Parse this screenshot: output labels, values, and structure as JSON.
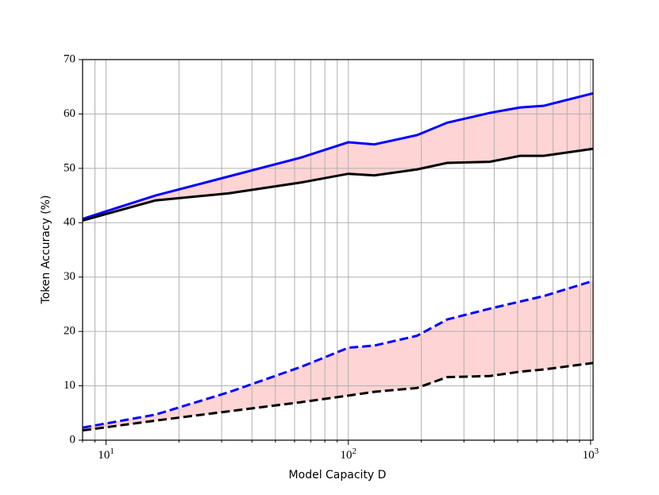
{
  "chart_data": {
    "type": "line",
    "xlabel": "Model Capacity D",
    "ylabel": "Token Accuracy (%)",
    "x": [
      8,
      16,
      32,
      64,
      100,
      128,
      192,
      256,
      384,
      512,
      640,
      1024
    ],
    "series": [
      {
        "color": "#0000ff",
        "dash": false,
        "values": [
          40.7,
          45.0,
          48.5,
          52.0,
          54.8,
          54.4,
          56.1,
          58.4,
          60.2,
          61.2,
          61.5,
          63.8
        ]
      },
      {
        "color": "#000000",
        "dash": false,
        "values": [
          40.4,
          44.1,
          45.4,
          47.4,
          49.0,
          48.7,
          49.8,
          51.0,
          51.2,
          52.3,
          52.3,
          53.6
        ]
      },
      {
        "color": "#0000ff",
        "dash": true,
        "values": [
          2.3,
          4.7,
          8.8,
          13.5,
          17.0,
          17.4,
          19.2,
          22.2,
          24.2,
          25.5,
          26.5,
          29.3
        ]
      },
      {
        "color": "#000000",
        "dash": true,
        "values": [
          1.8,
          3.6,
          5.3,
          7.0,
          8.2,
          8.9,
          9.6,
          11.6,
          11.8,
          12.6,
          13.0,
          14.2
        ]
      }
    ],
    "fill_between": [
      [
        0,
        1
      ],
      [
        2,
        3
      ]
    ],
    "fill_color": "#ffd4d4",
    "xscale": "log",
    "xlim": [
      8,
      1024
    ],
    "xticks": [
      {
        "value": 10,
        "label": "10^1"
      },
      {
        "value": 100,
        "label": "10^2"
      },
      {
        "value": 1000,
        "label": "10^3"
      }
    ],
    "xminorticks": [
      8,
      9,
      20,
      30,
      40,
      50,
      60,
      70,
      80,
      90,
      200,
      300,
      400,
      500,
      600,
      700,
      800,
      900
    ],
    "ylim": [
      0,
      70
    ],
    "yticks": [
      0,
      10,
      20,
      30,
      40,
      50,
      60,
      70
    ],
    "grid": true
  }
}
